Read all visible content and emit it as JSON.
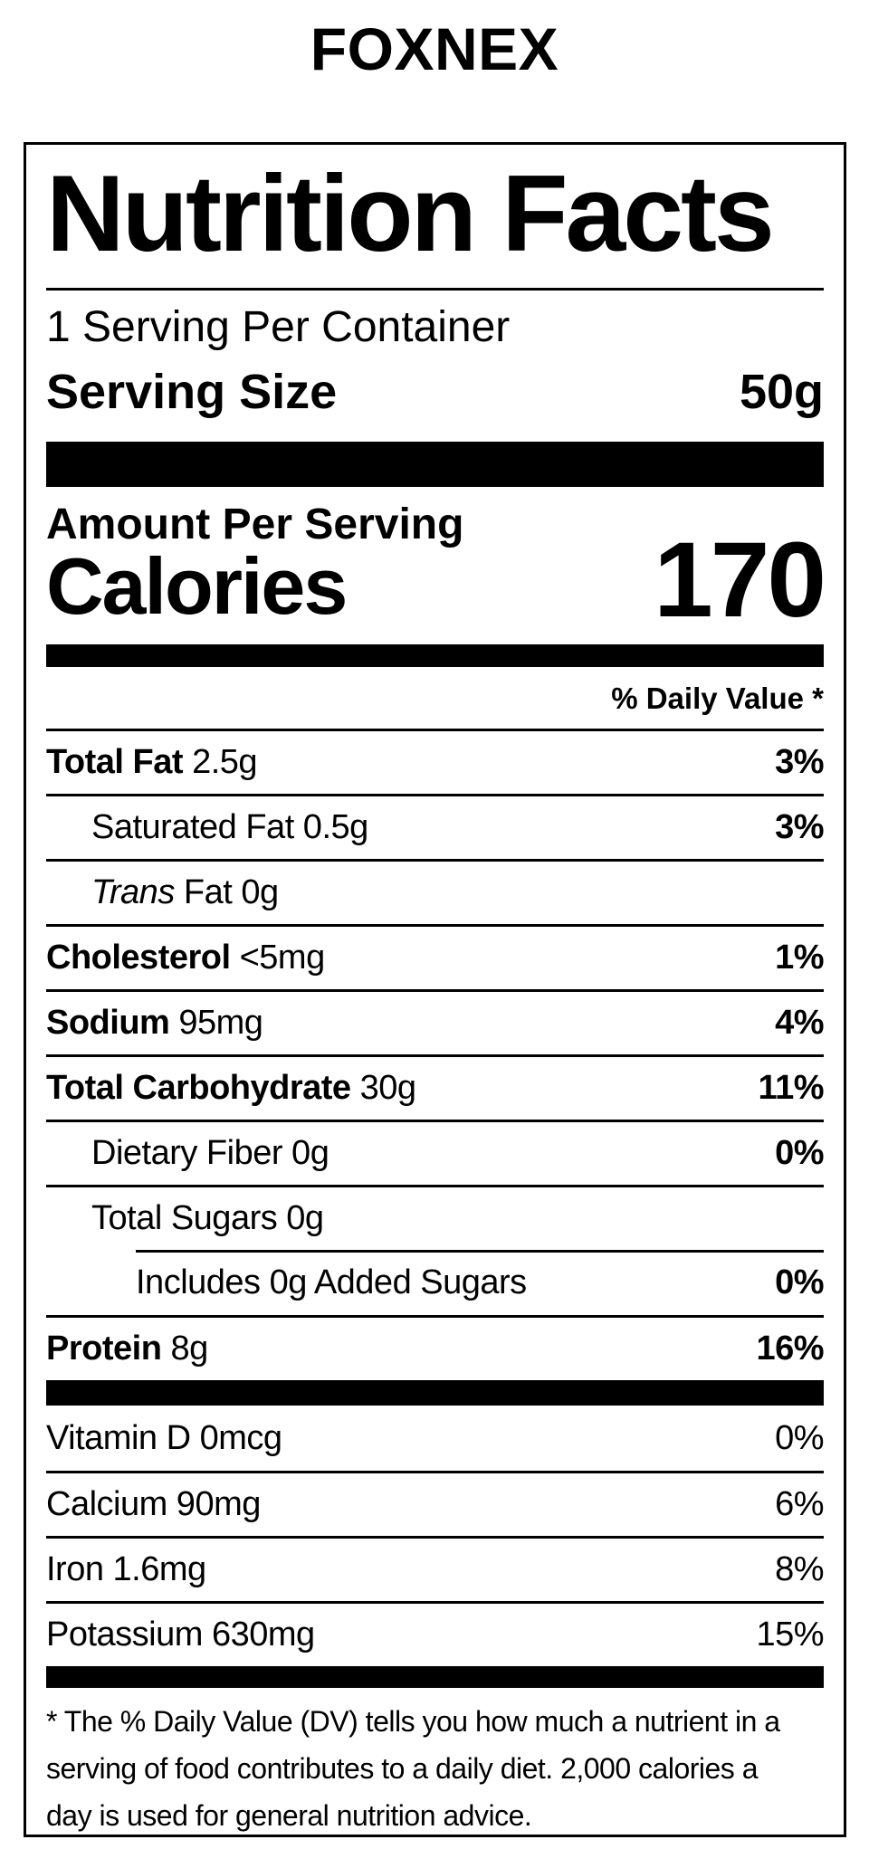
{
  "brand": "FOXNEX",
  "nutrition": {
    "title": "Nutrition Facts",
    "servings_per_container": "1 Serving Per Container",
    "serving_size_label": "Serving Size",
    "serving_size_value": "50g",
    "amount_per_serving": "Amount Per Serving",
    "calories_label": "Calories",
    "calories_value": "170",
    "daily_value_header": "% Daily Value *",
    "nutrients": [
      {
        "name": "Total Fat",
        "amount": "2.5g",
        "dv": "3%",
        "name_bold": true,
        "indent": 0
      },
      {
        "name": "Saturated Fat",
        "amount": "0.5g",
        "dv": "3%",
        "name_bold": false,
        "indent": 1
      },
      {
        "name_italic": "Trans",
        "name": "Fat",
        "amount": "0g",
        "dv": "",
        "name_bold": false,
        "indent": 1
      },
      {
        "name": "Cholesterol",
        "amount": "<5mg",
        "dv": "1%",
        "name_bold": true,
        "indent": 0
      },
      {
        "name": "Sodium",
        "amount": "95mg",
        "dv": "4%",
        "name_bold": true,
        "indent": 0
      },
      {
        "name": "Total Carbohydrate",
        "amount": "30g",
        "dv": "11%",
        "name_bold": true,
        "indent": 0
      },
      {
        "name": "Dietary Fiber",
        "amount": "0g",
        "dv": "0%",
        "name_bold": false,
        "indent": 1
      },
      {
        "name": "Total Sugars",
        "amount": "0g",
        "dv": "",
        "name_bold": false,
        "indent": 1
      },
      {
        "name": "Includes 0g Added Sugars",
        "amount": "",
        "dv": "0%",
        "name_bold": false,
        "indent": 2,
        "divider_indented": true
      },
      {
        "name": "Protein",
        "amount": "8g",
        "dv": "16%",
        "name_bold": true,
        "indent": 0
      }
    ],
    "micronutrients": [
      {
        "name": "Vitamin D 0mcg",
        "dv": "0%"
      },
      {
        "name": "Calcium 90mg",
        "dv": "6%"
      },
      {
        "name": "Iron 1.6mg",
        "dv": "8%"
      },
      {
        "name": "Potassium 630mg",
        "dv": "15%"
      }
    ],
    "footnote_lines": [
      "* The % Daily Value (DV) tells you how much a nutrient in a",
      "serving of food contributes to a daily diet. 2,000 calories a",
      "day is used for general nutrition advice."
    ]
  }
}
